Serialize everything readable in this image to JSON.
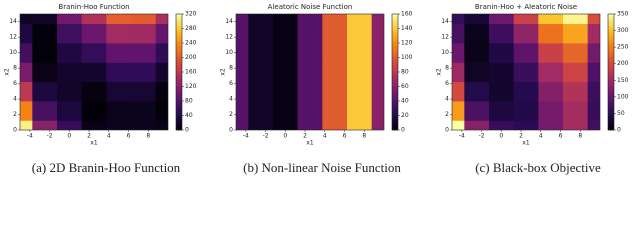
{
  "chart_data": [
    {
      "type": "contour",
      "title": "Branin-Hoo Function",
      "xlabel": "x1",
      "ylabel": "x2",
      "caption": "(a) 2D Branin-Hoo Function",
      "x": [
        -5,
        -2.5,
        0,
        2.5,
        5,
        7.5,
        10
      ],
      "y": [
        0,
        2.5,
        5,
        7.5,
        10,
        12.5,
        15
      ],
      "z": [
        [
          309,
          119,
          56,
          10,
          14,
          15,
          11
        ],
        [
          232,
          69,
          32,
          2,
          14,
          15,
          2
        ],
        [
          162,
          34,
          21,
          7,
          27,
          27,
          6
        ],
        [
          107,
          11,
          22,
          24,
          52,
          52,
          22
        ],
        [
          65,
          3,
          36,
          54,
          89,
          88,
          51
        ],
        [
          35,
          5,
          62,
          96,
          140,
          138,
          92
        ],
        [
          18,
          20,
          101,
          150,
          203,
          201,
          146
        ]
      ],
      "xlim": [
        -5,
        10
      ],
      "ylim": [
        0,
        15
      ],
      "xticks": [
        -4,
        -2,
        0,
        2,
        4,
        6,
        8
      ],
      "yticks": [
        0,
        2,
        4,
        6,
        8,
        10,
        12,
        14
      ],
      "clim": [
        0,
        320
      ],
      "cticks": [
        0,
        40,
        80,
        120,
        160,
        200,
        240,
        280,
        320
      ],
      "colormap": [
        "#000004",
        "#280b54",
        "#65156e",
        "#9f2a63",
        "#d44842",
        "#f57d15",
        "#fac228",
        "#fcffa4"
      ]
    },
    {
      "type": "contour",
      "title": "Aleatoric Noise Function",
      "xlabel": "x1",
      "ylabel": "x2",
      "caption": "(b) Non-linear Noise Function",
      "x": [
        -5,
        -2.5,
        0,
        2.5,
        5,
        7.5,
        10
      ],
      "y": [
        0,
        2.5,
        5,
        7.5,
        10,
        12.5,
        15
      ],
      "z": [
        [
          40,
          10,
          5,
          40,
          100,
          140,
          60
        ],
        [
          40,
          10,
          5,
          40,
          100,
          140,
          60
        ],
        [
          40,
          10,
          5,
          40,
          100,
          140,
          60
        ],
        [
          40,
          10,
          5,
          40,
          100,
          140,
          60
        ],
        [
          40,
          10,
          5,
          40,
          100,
          140,
          60
        ],
        [
          40,
          10,
          5,
          40,
          100,
          140,
          60
        ],
        [
          40,
          10,
          5,
          40,
          100,
          140,
          60
        ]
      ],
      "xlim": [
        -5,
        10
      ],
      "ylim": [
        0,
        15
      ],
      "xticks": [
        -4,
        -2,
        0,
        2,
        4,
        6,
        8
      ],
      "yticks": [
        0,
        2,
        4,
        6,
        8,
        10,
        12,
        14
      ],
      "clim": [
        0,
        160
      ],
      "cticks": [
        0,
        20,
        40,
        60,
        80,
        100,
        120,
        140,
        160
      ],
      "colormap": [
        "#000004",
        "#280b54",
        "#65156e",
        "#9f2a63",
        "#d44842",
        "#f57d15",
        "#fac228",
        "#fcffa4"
      ]
    },
    {
      "type": "contour",
      "title": "Branin-Hoo + Aleatoric Noise",
      "xlabel": "x1",
      "ylabel": "x2",
      "caption": "(c) Black-box Objective",
      "x": [
        -5,
        -2.5,
        0,
        2.5,
        5,
        7.5,
        10
      ],
      "y": [
        0,
        2.5,
        5,
        7.5,
        10,
        12.5,
        15
      ],
      "z": [
        [
          349,
          129,
          61,
          50,
          114,
          155,
          71
        ],
        [
          272,
          79,
          37,
          42,
          114,
          155,
          62
        ],
        [
          202,
          44,
          26,
          47,
          127,
          167,
          66
        ],
        [
          147,
          21,
          27,
          64,
          152,
          192,
          82
        ],
        [
          105,
          13,
          41,
          94,
          189,
          228,
          111
        ],
        [
          75,
          15,
          67,
          136,
          240,
          278,
          152
        ],
        [
          58,
          30,
          106,
          190,
          303,
          341,
          206
        ]
      ],
      "xlim": [
        -5,
        10
      ],
      "ylim": [
        0,
        15
      ],
      "xticks": [
        -4,
        -2,
        0,
        2,
        4,
        6,
        8
      ],
      "yticks": [
        0,
        2,
        4,
        6,
        8,
        10,
        12,
        14
      ],
      "clim": [
        0,
        350
      ],
      "cticks": [
        0,
        50,
        100,
        150,
        200,
        250,
        300,
        350
      ],
      "colormap": [
        "#000004",
        "#280b54",
        "#65156e",
        "#9f2a63",
        "#d44842",
        "#f57d15",
        "#fac228",
        "#fcffa4"
      ]
    }
  ]
}
